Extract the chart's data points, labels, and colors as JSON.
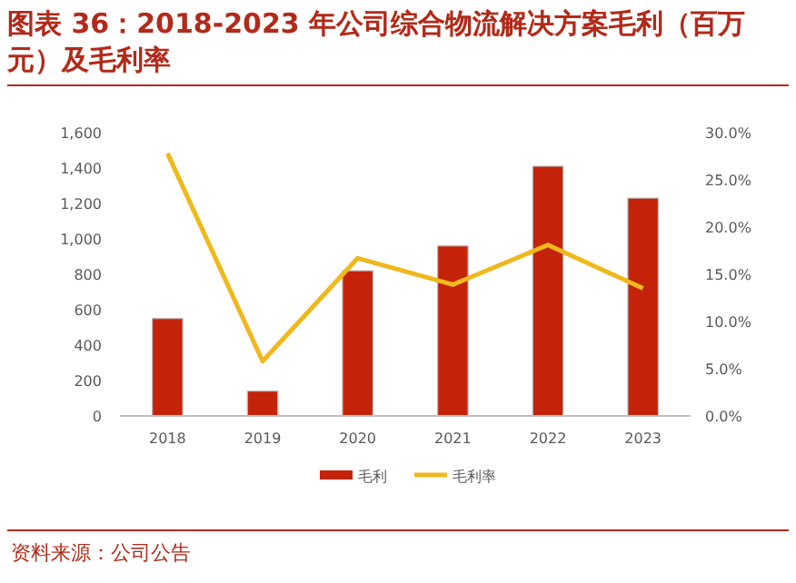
{
  "chart_data": {
    "type": "bar",
    "title": "图表 36：2018-2023 年公司综合物流解决方案毛利（百万元）及毛利率",
    "categories": [
      "2018",
      "2019",
      "2020",
      "2021",
      "2022",
      "2023"
    ],
    "series": [
      {
        "name": "毛利",
        "color": "#c4230a",
        "values": [
          550,
          140,
          820,
          960,
          1410,
          1230
        ]
      },
      {
        "name": "毛利率",
        "type": "line",
        "axis": "y2",
        "color": "#f0b81c",
        "values": [
          27.8,
          5.8,
          16.7,
          13.9,
          18.1,
          13.5
        ]
      }
    ],
    "ylim": [
      0,
      1600
    ],
    "yticks": [
      {
        "value": 0,
        "label": "0"
      },
      {
        "value": 200,
        "label": "200"
      },
      {
        "value": 400,
        "label": "400"
      },
      {
        "value": 600,
        "label": "600"
      },
      {
        "value": 800,
        "label": "800"
      },
      {
        "value": 1000,
        "label": "1,000"
      },
      {
        "value": 1200,
        "label": "1,200"
      },
      {
        "value": 1400,
        "label": "1,400"
      },
      {
        "value": 1600,
        "label": "1,600"
      }
    ],
    "y2lim": [
      0,
      30
    ],
    "y2ticks": [
      {
        "value": 0,
        "label": "0.0%"
      },
      {
        "value": 5,
        "label": "5.0%"
      },
      {
        "value": 10,
        "label": "10.0%"
      },
      {
        "value": 15,
        "label": "15.0%"
      },
      {
        "value": 20,
        "label": "20.0%"
      },
      {
        "value": 25,
        "label": "25.0%"
      },
      {
        "value": 30,
        "label": "30.0%"
      }
    ],
    "legend": "bottom",
    "grid": false,
    "marker": "none",
    "annotations": [
      "资料来源：公司公告"
    ]
  }
}
